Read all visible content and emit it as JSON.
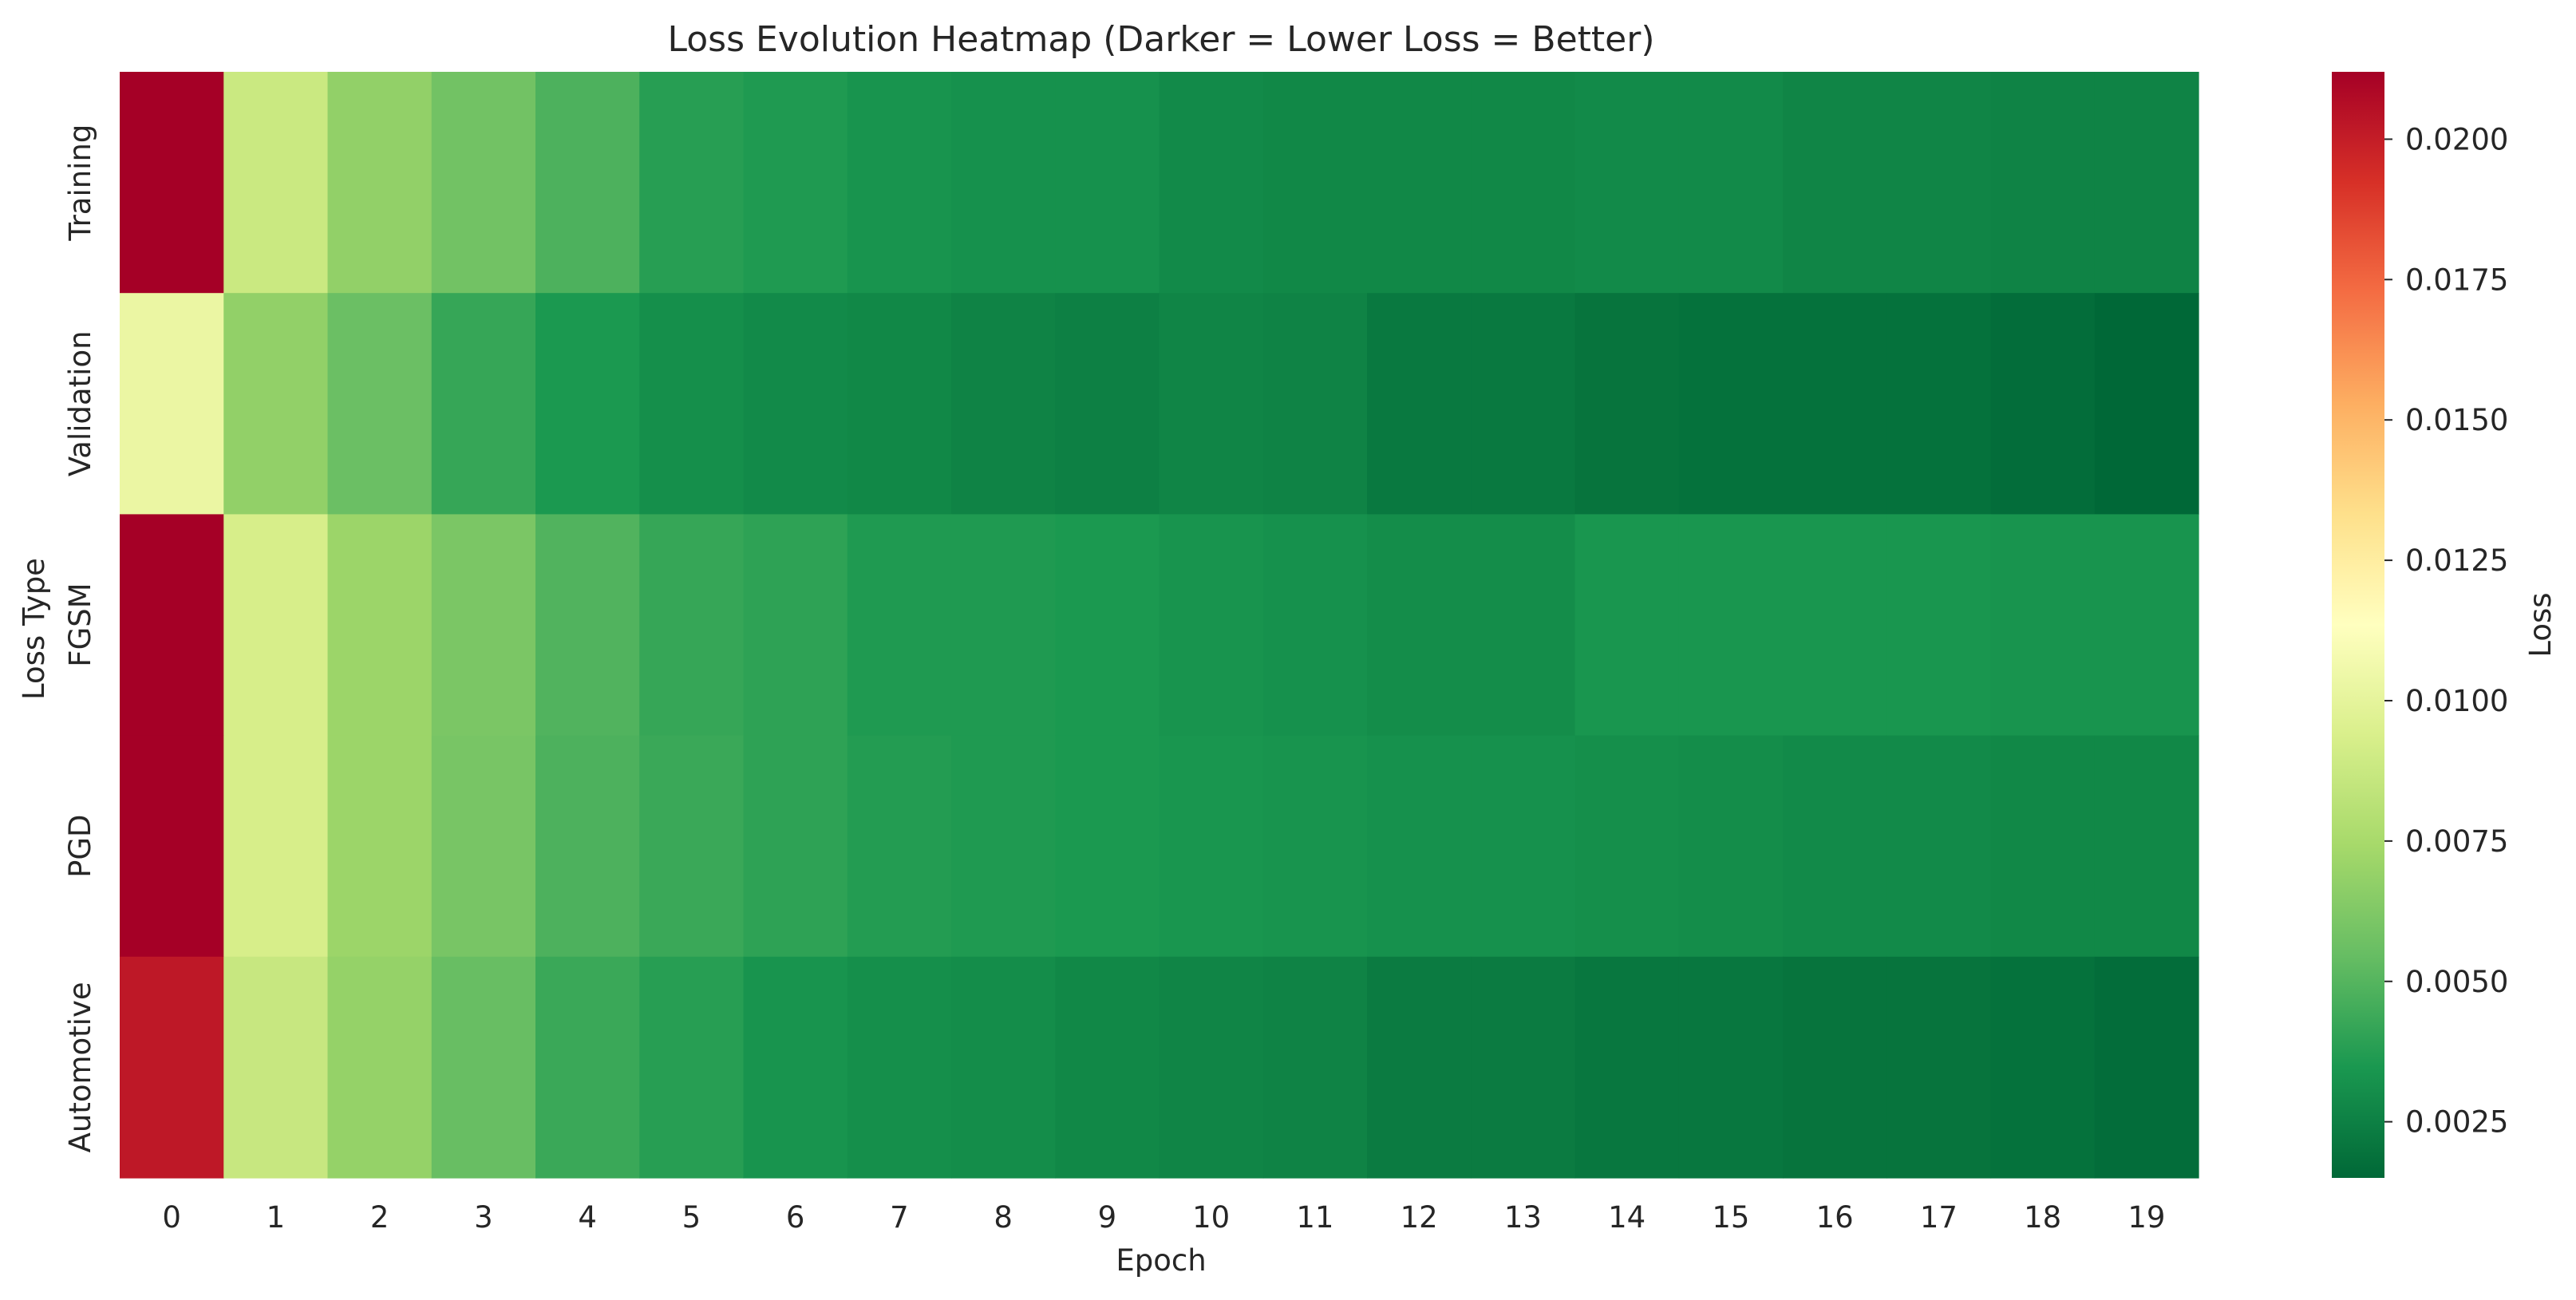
{
  "chart_data": {
    "type": "heatmap",
    "title": "Loss Evolution Heatmap (Darker = Lower Loss = Better)",
    "xlabel": "Epoch",
    "ylabel": "Loss Type",
    "colorbar_label": "Loss",
    "colormap": "RdYlGn_r",
    "vmin": 0.0015,
    "vmax": 0.0212,
    "x_categories": [
      "0",
      "1",
      "2",
      "3",
      "4",
      "5",
      "6",
      "7",
      "8",
      "9",
      "10",
      "11",
      "12",
      "13",
      "14",
      "15",
      "16",
      "17",
      "18",
      "19"
    ],
    "y_categories": [
      "Training",
      "Validation",
      "FGSM",
      "PGD",
      "Automotive"
    ],
    "colorbar_ticks": [
      "0.0025",
      "0.0050",
      "0.0075",
      "0.0100",
      "0.0125",
      "0.0150",
      "0.0175",
      "0.0200"
    ],
    "values": [
      [
        0.0212,
        0.0088,
        0.0068,
        0.0058,
        0.0048,
        0.0038,
        0.0036,
        0.0033,
        0.0032,
        0.0032,
        0.0029,
        0.0028,
        0.0028,
        0.0028,
        0.0029,
        0.0029,
        0.0027,
        0.0027,
        0.0026,
        0.0026
      ],
      [
        0.0103,
        0.0068,
        0.0056,
        0.0042,
        0.0035,
        0.0031,
        0.0029,
        0.0028,
        0.0026,
        0.0025,
        0.0027,
        0.0026,
        0.0022,
        0.0022,
        0.002,
        0.0019,
        0.0019,
        0.0019,
        0.0017,
        0.0015
      ],
      [
        0.0212,
        0.0093,
        0.0071,
        0.0061,
        0.0049,
        0.0042,
        0.004,
        0.0036,
        0.0036,
        0.0035,
        0.0033,
        0.0032,
        0.003,
        0.003,
        0.0034,
        0.0034,
        0.0034,
        0.0034,
        0.0033,
        0.0033
      ],
      [
        0.0212,
        0.0093,
        0.0071,
        0.006,
        0.0048,
        0.0043,
        0.004,
        0.0037,
        0.0036,
        0.0035,
        0.0034,
        0.0033,
        0.0032,
        0.0032,
        0.0031,
        0.003,
        0.0029,
        0.0029,
        0.0028,
        0.0028
      ],
      [
        0.0202,
        0.0087,
        0.0069,
        0.0055,
        0.0043,
        0.0038,
        0.0033,
        0.0031,
        0.003,
        0.0028,
        0.0027,
        0.0026,
        0.0023,
        0.0023,
        0.0021,
        0.0021,
        0.002,
        0.002,
        0.0019,
        0.0017
      ]
    ]
  }
}
